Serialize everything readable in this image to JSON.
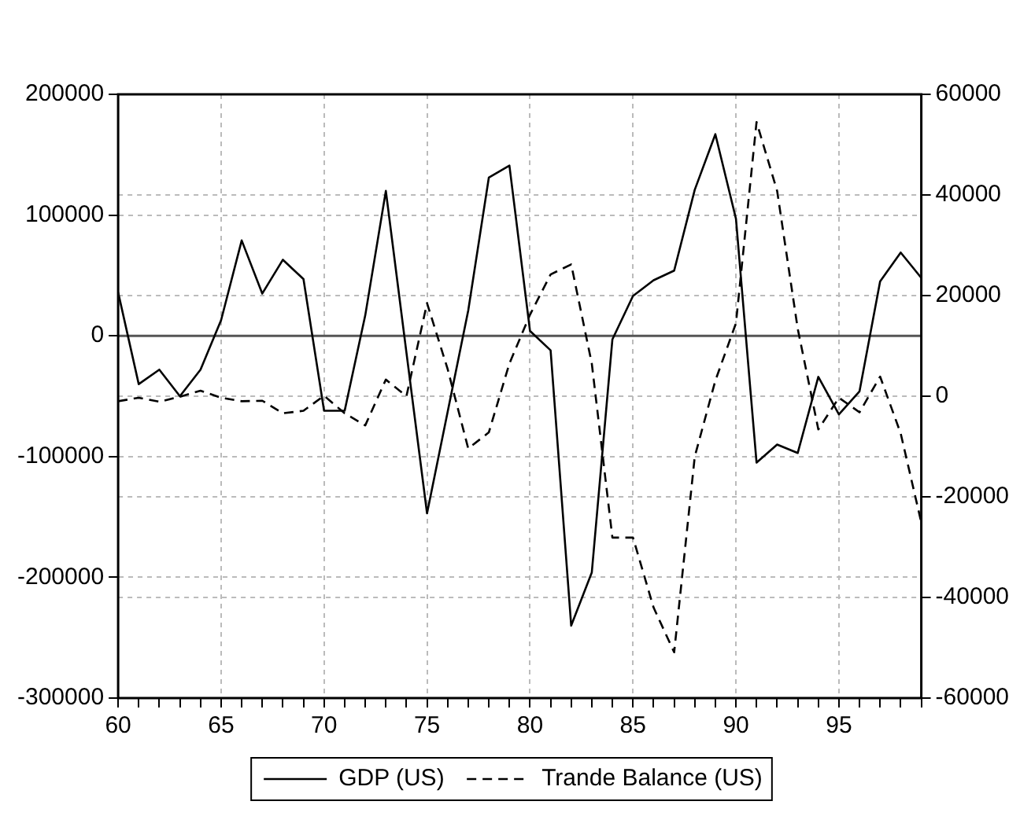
{
  "chart_data": {
    "type": "line",
    "x": [
      60,
      61,
      62,
      63,
      64,
      65,
      66,
      67,
      68,
      69,
      70,
      71,
      72,
      73,
      74,
      75,
      76,
      77,
      78,
      79,
      80,
      81,
      82,
      83,
      84,
      85,
      86,
      87,
      88,
      89,
      90,
      91,
      92,
      93,
      94,
      95,
      96,
      97,
      98,
      99
    ],
    "series": [
      {
        "name": "GDP (US)",
        "color": "#000000",
        "line_style": "solid",
        "values": [
          36000,
          -40000,
          -28000,
          -50000,
          -28000,
          13000,
          79000,
          35000,
          63000,
          47000,
          -62000,
          -62000,
          17000,
          120000,
          -14000,
          -147000,
          -63000,
          21000,
          131000,
          141000,
          4000,
          -12000,
          -240000,
          -196000,
          -3000,
          33000,
          46000,
          54000,
          121000,
          167000,
          97000,
          -105000,
          -90000,
          -97000,
          -34000,
          -65000,
          -46000,
          45000,
          69000,
          48000
        ]
      },
      {
        "name": "Trande Balance (US)",
        "color": "#000000",
        "line_style": "dashed",
        "axis": "y2",
        "values": [
          -1000,
          -300,
          -1100,
          -100,
          1100,
          -300,
          -1000,
          -900,
          -3400,
          -2900,
          100,
          -3400,
          -5800,
          3300,
          0,
          18500,
          5400,
          -10400,
          -7200,
          6500,
          16200,
          24200,
          26200,
          6500,
          -28100,
          -28100,
          -42000,
          -50900,
          -12000,
          3100,
          14500,
          54500,
          40800,
          13400,
          -6600,
          -300,
          -3200,
          3900,
          -7400,
          -25100
        ]
      }
    ],
    "xlim": [
      60,
      99
    ],
    "xticks": [
      60,
      {
        "value": 61,
        "label": null
      },
      {
        "value": 62,
        "label": null
      },
      {
        "value": 63,
        "label": null
      },
      {
        "value": 64,
        "label": null
      },
      65,
      {
        "value": 66,
        "label": null
      },
      {
        "value": 67,
        "label": null
      },
      {
        "value": 68,
        "label": null
      },
      {
        "value": 69,
        "label": null
      },
      70,
      {
        "value": 71,
        "label": null
      },
      {
        "value": 72,
        "label": null
      },
      {
        "value": 73,
        "label": null
      },
      {
        "value": 74,
        "label": null
      },
      75,
      {
        "value": 76,
        "label": null
      },
      {
        "value": 77,
        "label": null
      },
      {
        "value": 78,
        "label": null
      },
      {
        "value": 79,
        "label": null
      },
      80,
      {
        "value": 81,
        "label": null
      },
      {
        "value": 82,
        "label": null
      },
      {
        "value": 83,
        "label": null
      },
      {
        "value": 84,
        "label": null
      },
      85,
      {
        "value": 86,
        "label": null
      },
      {
        "value": 87,
        "label": null
      },
      {
        "value": 88,
        "label": null
      },
      {
        "value": 89,
        "label": null
      },
      90,
      {
        "value": 91,
        "label": null
      },
      {
        "value": 92,
        "label": null
      },
      {
        "value": 93,
        "label": null
      },
      {
        "value": 94,
        "label": null
      },
      95,
      {
        "value": 96,
        "label": null
      },
      {
        "value": 97,
        "label": null
      },
      {
        "value": 98,
        "label": null
      },
      {
        "value": 99,
        "label": null
      }
    ],
    "ylim": [
      -300000,
      200000
    ],
    "yticks": [
      -300000,
      -200000,
      -100000,
      0,
      100000,
      200000
    ],
    "y2lim": [
      -60000,
      60000
    ],
    "y2ticks": [
      -60000,
      -40000,
      -20000,
      0,
      20000,
      40000,
      60000
    ],
    "ref_lines": [
      {
        "axis": "y",
        "value": 0,
        "color": "#555555"
      }
    ],
    "grid": true,
    "legend": "bottom",
    "marker": "none"
  }
}
